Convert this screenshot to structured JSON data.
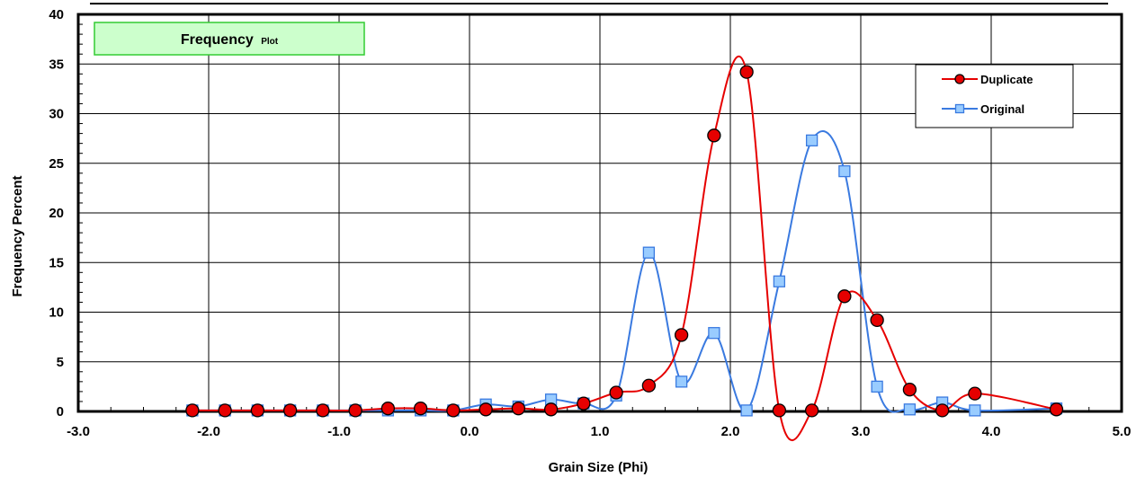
{
  "chart_data": {
    "type": "line",
    "title_main": "Frequency",
    "title_sub": "Plot",
    "xlabel": "Grain Size (Phi)",
    "ylabel": "Frequency Percent",
    "xlim": [
      -3.0,
      5.0
    ],
    "ylim": [
      0,
      40
    ],
    "x_ticks": [
      "-3.0",
      "-2.0",
      "-1.0",
      "0.0",
      "1.0",
      "2.0",
      "3.0",
      "4.0",
      "5.0"
    ],
    "y_ticks": [
      "0",
      "5",
      "10",
      "15",
      "20",
      "25",
      "30",
      "35",
      "40"
    ],
    "grid": true,
    "legend_position": "top-right",
    "series": [
      {
        "name": "Duplicate",
        "color": "#e60000",
        "marker": "circle",
        "marker_fill": "#e60000",
        "x": [
          -2.125,
          -1.875,
          -1.625,
          -1.375,
          -1.125,
          -0.875,
          -0.625,
          -0.375,
          -0.125,
          0.125,
          0.375,
          0.625,
          0.875,
          1.125,
          1.375,
          1.625,
          1.875,
          2.125,
          2.375,
          2.625,
          2.875,
          3.125,
          3.375,
          3.625,
          3.875,
          4.5
        ],
        "y": [
          0.1,
          0.1,
          0.1,
          0.1,
          0.1,
          0.1,
          0.3,
          0.3,
          0.1,
          0.2,
          0.3,
          0.2,
          0.8,
          1.9,
          2.6,
          7.7,
          27.8,
          34.2,
          0.1,
          0.1,
          11.6,
          9.2,
          2.2,
          0.1,
          1.8,
          0.2
        ]
      },
      {
        "name": "Original",
        "color": "#3a7ae0",
        "marker": "square",
        "marker_fill": "#99ccff",
        "x": [
          -2.125,
          -1.875,
          -1.625,
          -1.375,
          -1.125,
          -0.875,
          -0.625,
          -0.375,
          -0.125,
          0.125,
          0.375,
          0.625,
          0.875,
          1.125,
          1.375,
          1.625,
          1.875,
          2.125,
          2.375,
          2.625,
          2.875,
          3.125,
          3.375,
          3.625,
          3.875,
          4.5
        ],
        "y": [
          0.1,
          0.1,
          0.1,
          0.1,
          0.1,
          0.1,
          0.1,
          0.1,
          0.1,
          0.7,
          0.5,
          1.2,
          0.8,
          1.6,
          16.0,
          3.0,
          7.9,
          0.1,
          13.1,
          27.3,
          24.2,
          2.5,
          0.2,
          0.9,
          0.1,
          0.3
        ]
      }
    ]
  }
}
